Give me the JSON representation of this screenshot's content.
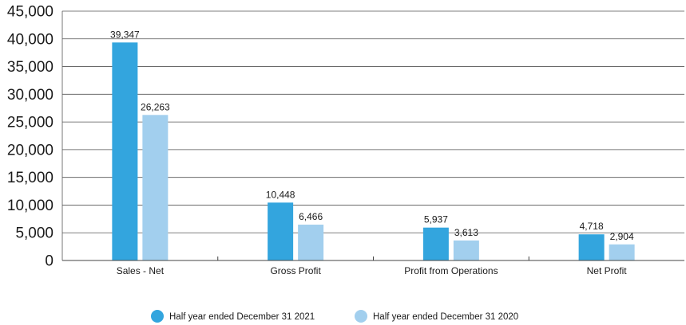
{
  "chart_data": {
    "type": "bar",
    "title": "",
    "xlabel": "",
    "ylabel": "",
    "categories": [
      "Sales - Net",
      "Gross Profit",
      "Profit from Operations",
      "Net Profit"
    ],
    "series": [
      {
        "name": "Half year ended December 31 2021",
        "color": "#33a5de",
        "values": [
          39347,
          10448,
          5937,
          4718
        ],
        "labels": [
          "39,347",
          "10,448",
          "5,937",
          "4,718"
        ]
      },
      {
        "name": "Half year ended December 31 2020",
        "color": "#a2cfee",
        "values": [
          26263,
          6466,
          3613,
          2904
        ],
        "labels": [
          "26,263",
          "6,466",
          "3,613",
          "2,904"
        ]
      }
    ],
    "ylim": [
      0,
      45000
    ],
    "yticks": [
      0,
      5000,
      10000,
      15000,
      20000,
      25000,
      30000,
      35000,
      40000,
      45000
    ],
    "ytick_labels": [
      "0",
      "5,000",
      "10,000",
      "15,000",
      "20,000",
      "25,000",
      "30,000",
      "35,000",
      "40,000",
      "45,000"
    ],
    "grid": true,
    "legend_position": "bottom-center"
  }
}
